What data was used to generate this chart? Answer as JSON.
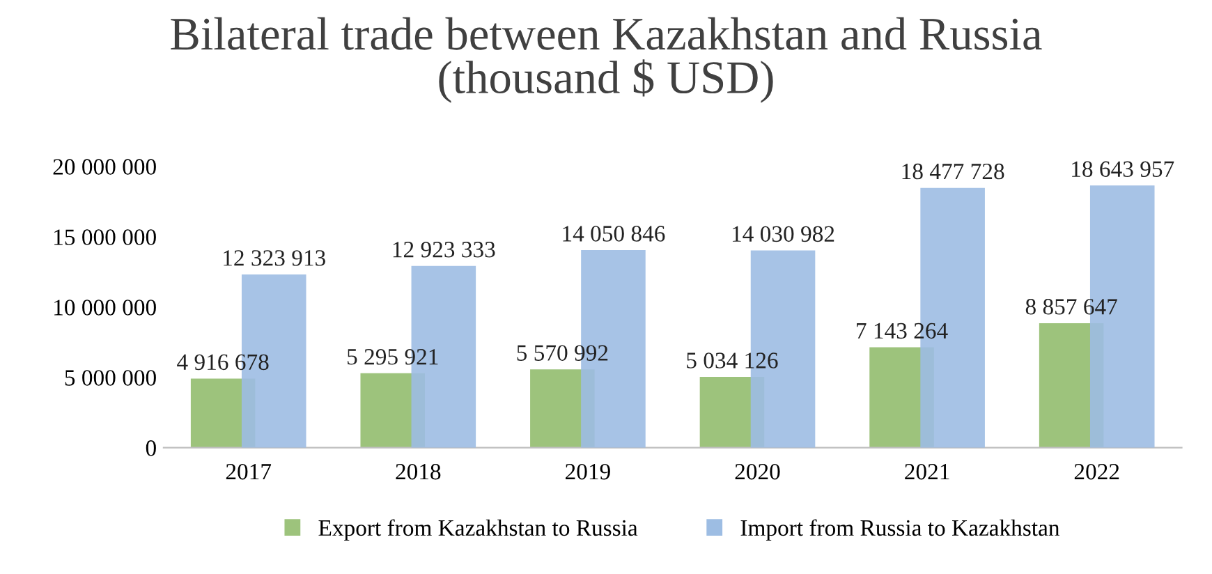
{
  "chart_data": {
    "type": "bar",
    "title": "Bilateral trade between Kazakhstan and Russia\n(thousand $ USD)",
    "categories": [
      "2017",
      "2018",
      "2019",
      "2020",
      "2021",
      "2022"
    ],
    "series": [
      {
        "name": "Export from Kazakhstan to Russia",
        "color": "#9dc37c",
        "values": [
          4916678,
          5295921,
          5570992,
          5034126,
          7143264,
          8857647
        ],
        "value_labels": [
          "4 916 678",
          "5 295 921",
          "5 570 992",
          "5 034 126",
          "7 143 264",
          "8 857 647"
        ]
      },
      {
        "name": "Import from Russia to Kazakhstan",
        "color": "#9dbde3",
        "values": [
          12323913,
          12923333,
          14050846,
          14030982,
          18477728,
          18643957
        ],
        "value_labels": [
          "12 323 913",
          "12 923 333",
          "14 050 846",
          "14 030 982",
          "18 477 728",
          "18 643 957"
        ]
      }
    ],
    "ylim": [
      0,
      20000000
    ],
    "yticks": [
      {
        "value": 0,
        "label": "0"
      },
      {
        "value": 5000000,
        "label": "5 000 000"
      },
      {
        "value": 10000000,
        "label": "10 000 000"
      },
      {
        "value": 15000000,
        "label": "15 000 000"
      },
      {
        "value": 20000000,
        "label": "20 000 000"
      }
    ],
    "grid": false,
    "legend": "bottom"
  }
}
